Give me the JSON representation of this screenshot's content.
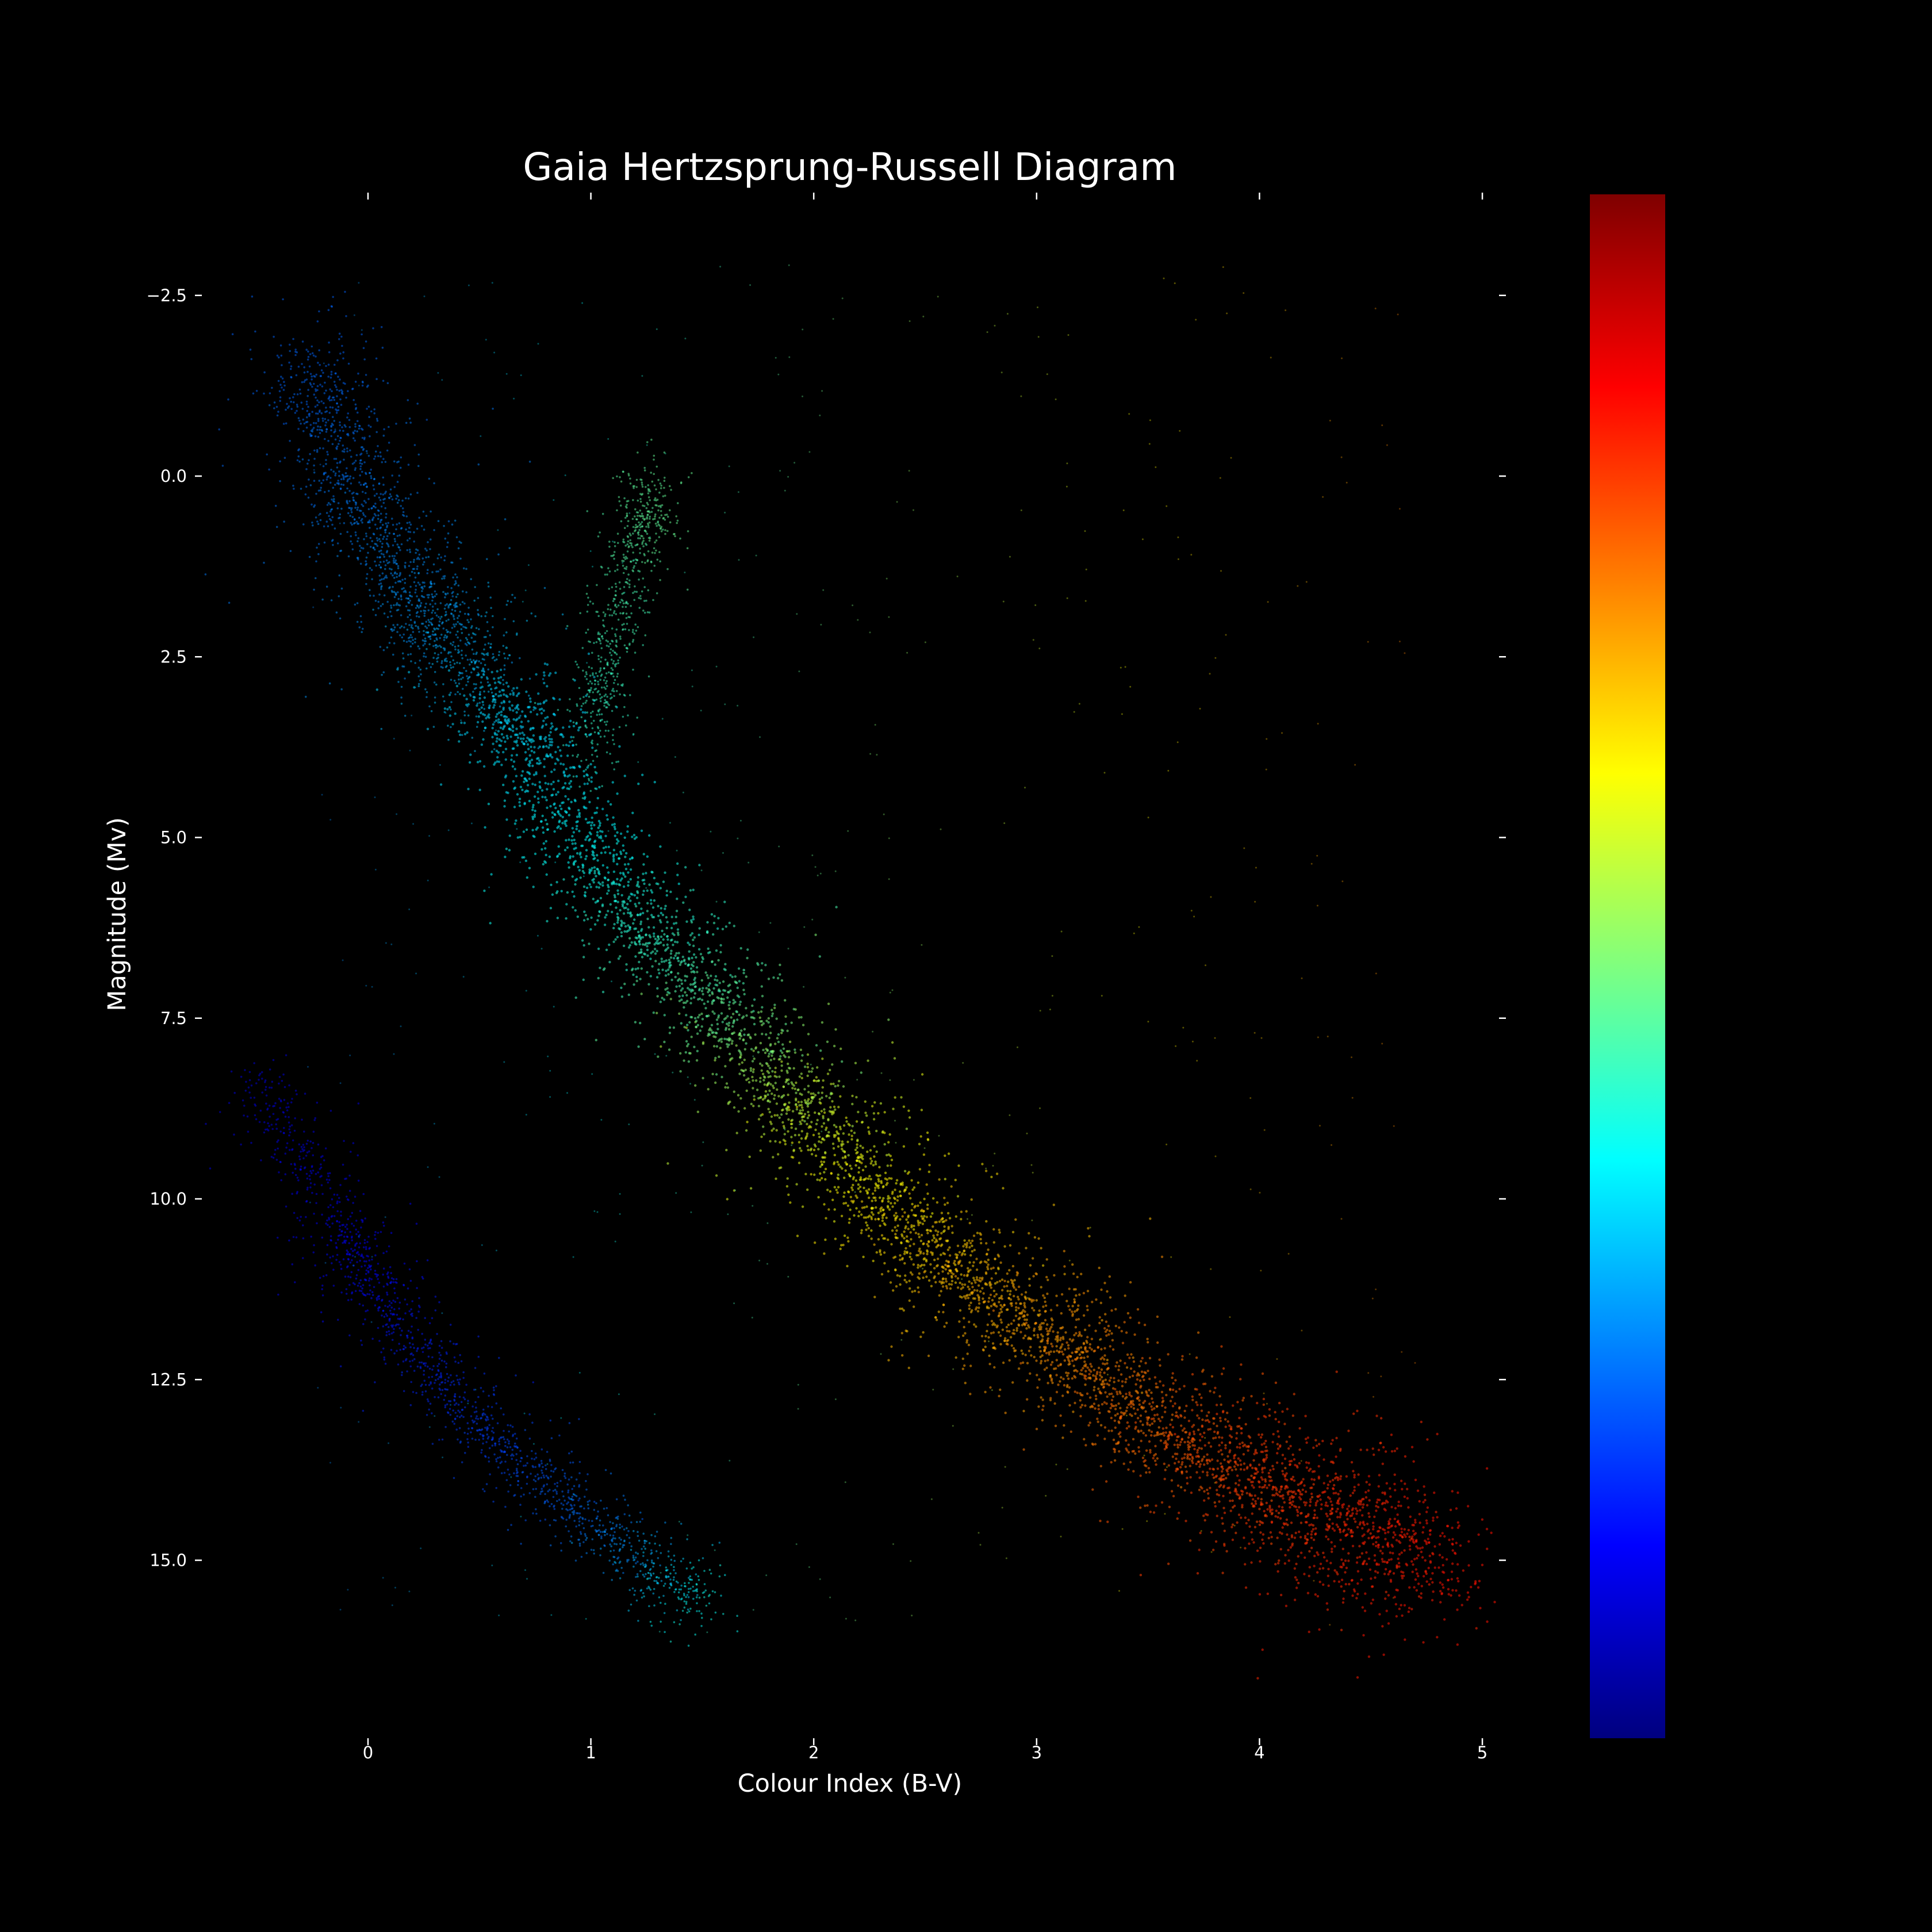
{
  "chart_data": {
    "type": "scatter",
    "title": "Gaia Hertzsprung-Russell Diagram",
    "xlabel": "Colour Index (B-V)",
    "ylabel": "Magnitude (Mv)",
    "xlim": [
      -0.7,
      5.1
    ],
    "ylim": [
      17.9,
      -3.9
    ],
    "y_inverted": true,
    "x_ticks": [
      "0",
      "1",
      "2",
      "3",
      "4",
      "5"
    ],
    "x_tick_values": [
      0,
      1,
      2,
      3,
      4,
      5
    ],
    "y_ticks": [
      "−2.5",
      "0.0",
      "2.5",
      "5.0",
      "7.5",
      "10.0",
      "12.5",
      "15.0"
    ],
    "y_tick_values": [
      -2.5,
      0,
      2.5,
      5,
      7.5,
      10,
      12.5,
      15
    ],
    "grid": false,
    "background": "#000000",
    "text_color": "#ffffff",
    "colormap": "jet",
    "colorbar": {
      "orientation": "vertical",
      "ticks": [],
      "colors": [
        "#00007f",
        "#0000ff",
        "#007fff",
        "#00ffff",
        "#7fff7f",
        "#ffff00",
        "#ff7f00",
        "#ff0000",
        "#7f0000"
      ]
    },
    "series": [
      {
        "region": "main-sequence",
        "x": [
          0.55,
          0.7,
          0.85,
          1.0,
          1.2,
          1.4,
          1.6,
          1.8,
          2.0,
          2.2,
          2.4,
          2.6,
          2.8,
          3.0,
          3.2,
          3.4,
          3.6,
          3.8,
          4.0,
          4.2,
          4.4,
          4.6,
          4.9
        ],
        "y": [
          2.9,
          3.6,
          4.4,
          5.3,
          6.1,
          6.8,
          7.5,
          8.2,
          8.9,
          9.6,
          10.3,
          10.9,
          11.4,
          11.8,
          12.3,
          12.8,
          13.2,
          13.6,
          13.9,
          14.2,
          14.5,
          14.8,
          15.2
        ],
        "c": [
          0.33,
          0.34,
          0.36,
          0.38,
          0.41,
          0.44,
          0.48,
          0.53,
          0.58,
          0.62,
          0.65,
          0.68,
          0.7,
          0.72,
          0.74,
          0.76,
          0.78,
          0.8,
          0.82,
          0.83,
          0.84,
          0.85,
          0.86
        ]
      },
      {
        "region": "upper-main-sequence",
        "x": [
          -0.3,
          -0.2,
          -0.1,
          0.0,
          0.1,
          0.2,
          0.3,
          0.4,
          0.5
        ],
        "y": [
          -1.6,
          -0.9,
          -0.2,
          0.5,
          1.1,
          1.6,
          2.0,
          2.4,
          2.8
        ],
        "c": [
          0.22,
          0.23,
          0.24,
          0.25,
          0.26,
          0.27,
          0.28,
          0.3,
          0.32
        ]
      },
      {
        "region": "giant-branch",
        "x": [
          1.0,
          1.05,
          1.1,
          1.15,
          1.2,
          1.25,
          1.3
        ],
        "y": [
          3.8,
          3.0,
          2.2,
          1.5,
          0.8,
          0.4,
          0.6
        ],
        "c": [
          0.42,
          0.43,
          0.44,
          0.45,
          0.46,
          0.47,
          0.48
        ]
      },
      {
        "region": "white-dwarfs",
        "x": [
          -0.5,
          -0.3,
          -0.1,
          0.0,
          0.1,
          0.3,
          0.5,
          0.7,
          0.9,
          1.1,
          1.3,
          1.5
        ],
        "y": [
          8.3,
          9.5,
          10.5,
          11.1,
          11.6,
          12.4,
          13.1,
          13.7,
          14.2,
          14.7,
          15.2,
          15.6
        ],
        "c": [
          0.1,
          0.11,
          0.12,
          0.13,
          0.14,
          0.16,
          0.18,
          0.2,
          0.22,
          0.26,
          0.32,
          0.4
        ]
      }
    ]
  }
}
